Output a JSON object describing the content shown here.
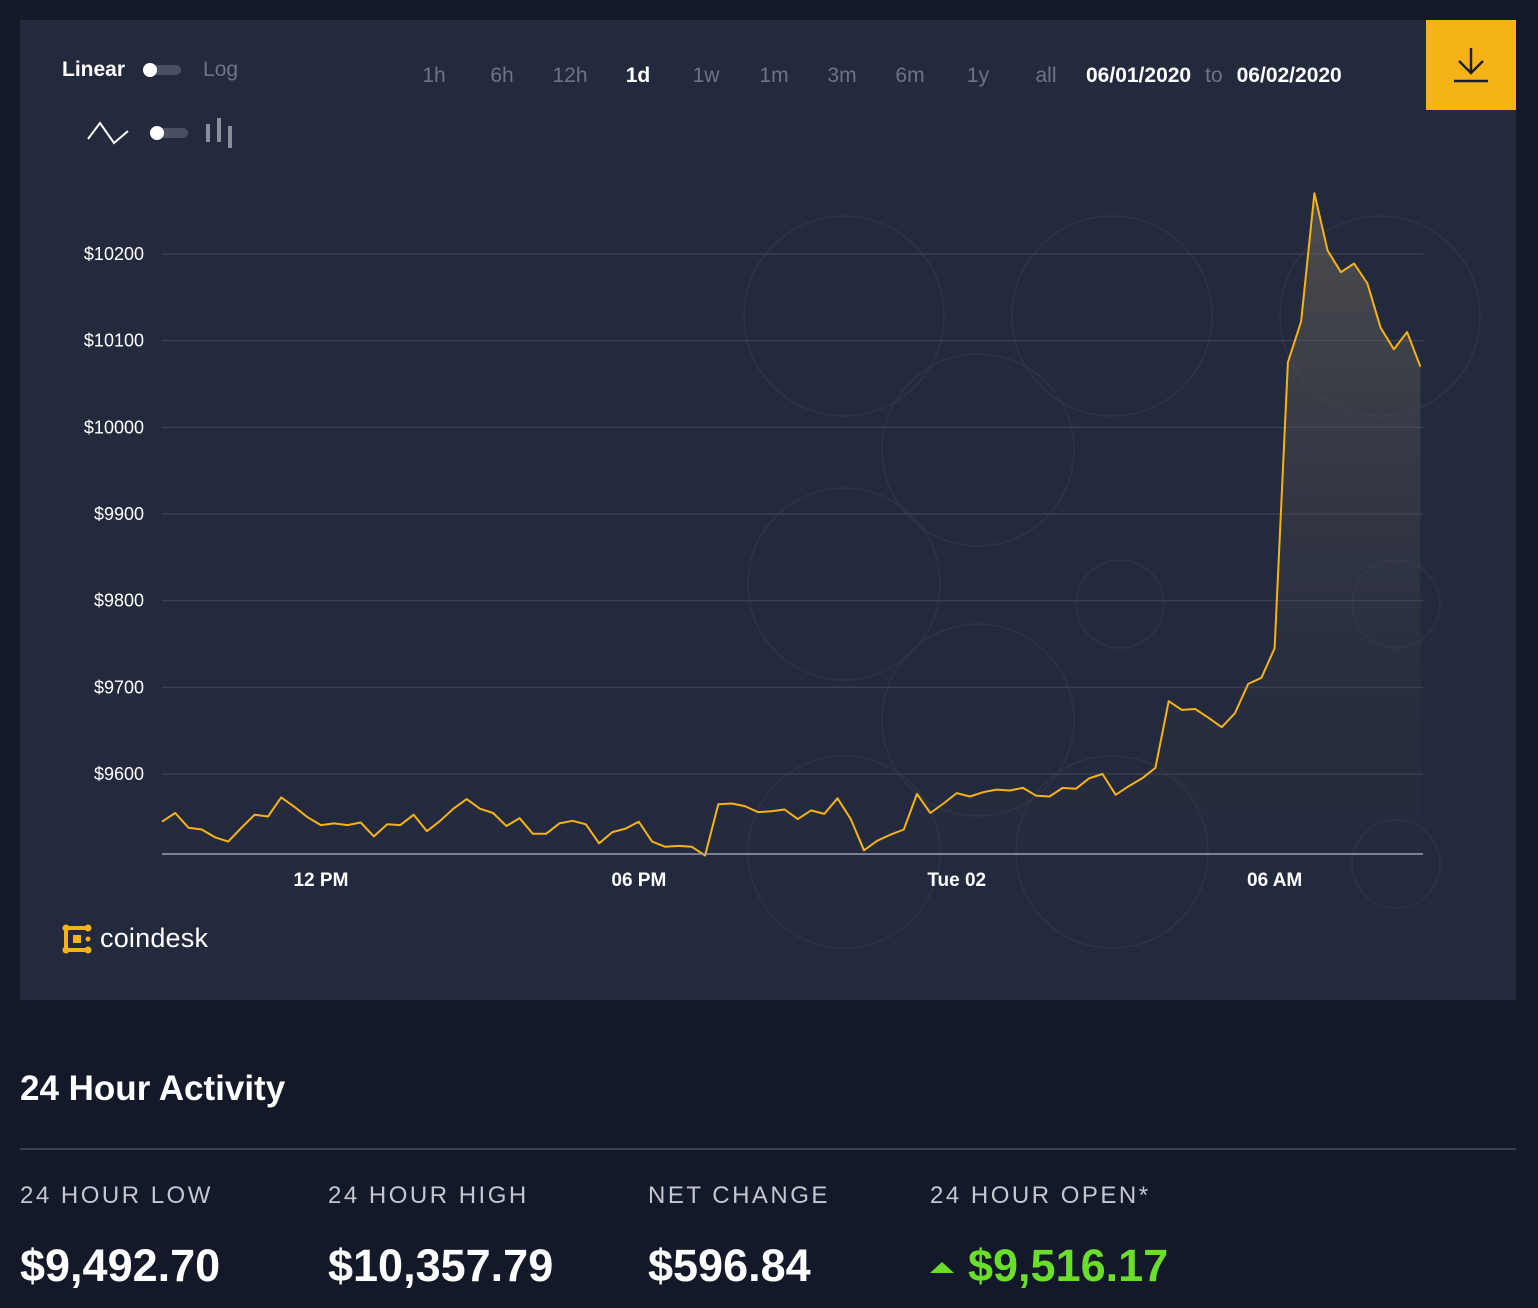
{
  "controls": {
    "scale_linear_label": "Linear",
    "scale_log_label": "Log",
    "ranges": [
      "1h",
      "6h",
      "12h",
      "1d",
      "1w",
      "1m",
      "3m",
      "6m",
      "1y",
      "all"
    ],
    "active_range": "1d",
    "date_from": "06/01/2020",
    "date_to_sep": "to",
    "date_to": "06/02/2020"
  },
  "brand": {
    "logo_text": "coindesk"
  },
  "colors": {
    "accent": "#f6b317",
    "line": "#f6b317",
    "positive": "#6bdd2b",
    "background": "#131929",
    "panel": "#242a3d"
  },
  "icons": {
    "download": "download-icon",
    "line_chart": "line-chart-icon",
    "bar_chart": "bar-chart-icon",
    "logo": "coindesk-logo-icon"
  },
  "chart_data": {
    "type": "area",
    "title": "",
    "xlabel": "",
    "ylabel": "",
    "ylim": [
      9492,
      10290
    ],
    "y_ticks": [
      9600,
      9700,
      9800,
      9900,
      10000,
      10100,
      10200
    ],
    "y_tick_labels": [
      "$9600",
      "$9700",
      "$9800",
      "$9900",
      "$10000",
      "$10100",
      "$10200"
    ],
    "x_ticks": [
      "12 PM",
      "06 PM",
      "Tue 02",
      "06 AM"
    ],
    "x_tick_hours": [
      12,
      18,
      24,
      30
    ],
    "x_range_hours": [
      9,
      32.8
    ],
    "grid": true,
    "legend": "none",
    "series": [
      {
        "x": [
          9.0,
          9.25,
          9.5,
          9.75,
          10.0,
          10.25,
          10.5,
          10.75,
          11.0,
          11.25,
          11.5,
          11.75,
          12.0,
          12.25,
          12.5,
          12.75,
          13.0,
          13.25,
          13.5,
          13.75,
          14.0,
          14.25,
          14.5,
          14.75,
          15.0,
          15.25,
          15.5,
          15.75,
          16.0,
          16.25,
          16.5,
          16.75,
          17.0,
          17.25,
          17.5,
          17.75,
          18.0,
          18.25,
          18.5,
          18.75,
          19.0,
          19.25,
          19.5,
          19.75,
          20.0,
          20.25,
          20.5,
          20.75,
          21.0,
          21.25,
          21.5,
          21.75,
          22.0,
          22.25,
          22.5,
          22.75,
          23.0,
          23.25,
          23.5,
          23.75,
          24.0,
          24.25,
          24.5,
          24.75,
          25.0,
          25.25,
          25.5,
          25.75,
          26.0,
          26.25,
          26.5,
          26.75,
          27.0,
          27.25,
          27.5,
          27.75,
          28.0,
          28.25,
          28.5,
          28.75,
          29.0,
          29.25,
          29.5,
          29.75,
          30.0,
          30.25,
          30.5,
          30.75,
          31.0,
          31.25,
          31.5,
          31.75,
          32.0,
          32.25,
          32.5,
          32.75
        ],
        "values": [
          9545,
          9555,
          9538,
          9536,
          9527,
          9522,
          9538,
          9553,
          9551,
          9573,
          9562,
          9550,
          9541,
          9543,
          9541,
          9544,
          9528,
          9542,
          9541,
          9553,
          9534,
          9546,
          9560,
          9571,
          9560,
          9555,
          9540,
          9549,
          9531,
          9531,
          9543,
          9546,
          9542,
          9520,
          9533,
          9537,
          9545,
          9522,
          9516,
          9517,
          9516,
          9506,
          9565,
          9566,
          9563,
          9556,
          9557,
          9559,
          9548,
          9558,
          9554,
          9572,
          9548,
          9512,
          9523,
          9530,
          9536,
          9577,
          9555,
          9566,
          9578,
          9574,
          9579,
          9582,
          9581,
          9584,
          9575,
          9574,
          9584,
          9583,
          9595,
          9600,
          9576,
          9586,
          9595,
          9607,
          9684,
          9674,
          9675,
          9665,
          9654,
          9670,
          9704,
          9711,
          9745,
          10075,
          10122,
          10270,
          10204,
          10179,
          10189,
          10166,
          10115,
          10090,
          10110,
          10070
        ]
      }
    ]
  },
  "activity": {
    "title": "24 Hour Activity",
    "stats": [
      {
        "label": "24 HOUR LOW",
        "value": "$9,492.70"
      },
      {
        "label": "24 HOUR HIGH",
        "value": "$10,357.79"
      },
      {
        "label": "NET CHANGE",
        "value": "$596.84"
      },
      {
        "label": "24 HOUR OPEN*",
        "value": "$9,516.17"
      }
    ]
  }
}
